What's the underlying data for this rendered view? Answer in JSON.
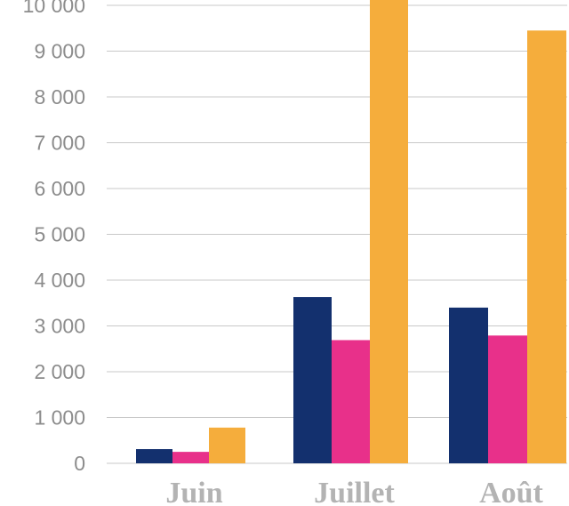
{
  "chart_data": {
    "type": "bar",
    "categories": [
      "Juin",
      "Juillet",
      "Août"
    ],
    "series": [
      {
        "values": [
          310,
          3630,
          3400
        ]
      },
      {
        "values": [
          250,
          2690,
          2790
        ]
      },
      {
        "values": [
          780,
          10300,
          9450
        ]
      }
    ],
    "y_ticks": [
      0,
      1000,
      2000,
      3000,
      4000,
      5000,
      6000,
      7000,
      8000,
      9000,
      10000
    ],
    "y_tick_labels": [
      "0",
      "1 000",
      "2 000",
      "3 000",
      "4 000",
      "5 000",
      "6 000",
      "7 000",
      "8 000",
      "9 000",
      "10  000"
    ],
    "ylim": [
      0,
      10400
    ],
    "grid": true,
    "legend": false,
    "colors": [
      "#13306e",
      "#e8308a",
      "#f5ad3c"
    ]
  }
}
